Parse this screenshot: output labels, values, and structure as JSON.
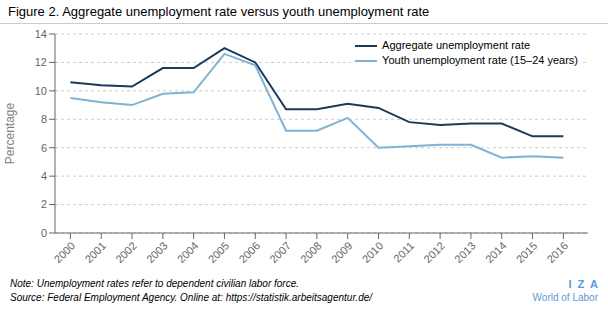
{
  "chart_data": {
    "type": "line",
    "title": "Figure 2. Aggregate unemployment rate versus youth unemployment rate",
    "x": [
      2000,
      2001,
      2002,
      2003,
      2004,
      2005,
      2006,
      2007,
      2008,
      2009,
      2010,
      2011,
      2012,
      2013,
      2014,
      2015,
      2016
    ],
    "series": [
      {
        "name": "Aggregate unemployment rate",
        "color": "#1a3a5c",
        "values": [
          10.6,
          10.4,
          10.3,
          11.6,
          11.6,
          13.0,
          12.0,
          8.7,
          8.7,
          9.1,
          8.8,
          7.8,
          7.6,
          7.7,
          7.7,
          6.8,
          6.8
        ]
      },
      {
        "name": "Youth unemployment rate (15–24 years)",
        "color": "#7fb3d3",
        "values": [
          9.5,
          9.2,
          9.0,
          9.8,
          9.9,
          12.6,
          11.8,
          7.2,
          7.2,
          8.1,
          6.0,
          6.1,
          6.2,
          6.2,
          5.3,
          5.4,
          5.3
        ]
      }
    ],
    "xlim": [
      1999.5,
      2016.8
    ],
    "xticks": [
      2000,
      2001,
      2002,
      2003,
      2004,
      2005,
      2006,
      2007,
      2008,
      2009,
      2010,
      2011,
      2012,
      2013,
      2014,
      2015,
      2016
    ],
    "ylim": [
      0,
      14
    ],
    "yticks": [
      0,
      2,
      4,
      6,
      8,
      10,
      12,
      14
    ],
    "ylabel": "Percentage",
    "grid": true,
    "legend": "upper right",
    "annotations": [
      "Note: Unemployment rates refer to dependent civilian labor force.",
      "Source: Federal Employment Agency. Online at: https://statistik.arbeitsagentur.de/",
      "I  Z  A",
      "World of Labor"
    ]
  }
}
